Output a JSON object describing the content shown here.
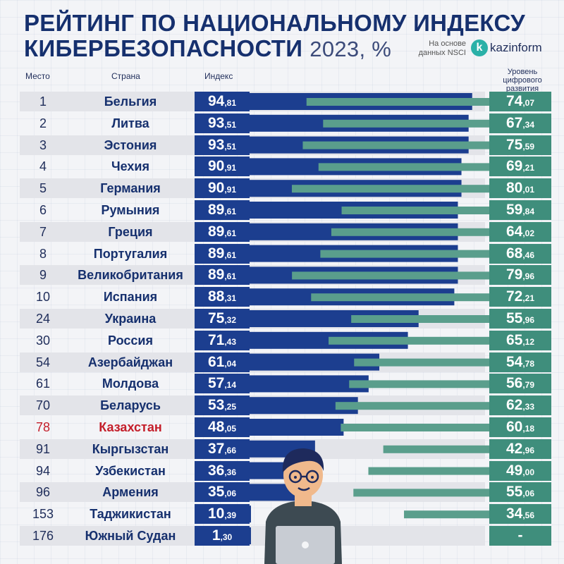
{
  "title": {
    "line1": "РЕЙТИНГ ПО НАЦИОНАЛЬНОМУ ИНДЕКСУ",
    "line2": "КИБЕРБЕЗОПАСНОСТИ",
    "year": "2023, %"
  },
  "source": {
    "line1": "На основе",
    "line2": "данных NSCI"
  },
  "logo": {
    "letter": "k",
    "text": "kazinform"
  },
  "headers": {
    "rank": "Место",
    "country": "Страна",
    "index": "Индекс",
    "digital": "Уровень цифрового развития"
  },
  "colors": {
    "index_bar": "#1c3e8f",
    "digital_bar": "#5a9e8c",
    "highlight": "#c41e2a"
  },
  "chart_data": {
    "type": "bar",
    "categories": [
      "Бельгия",
      "Литва",
      "Эстония",
      "Чехия",
      "Германия",
      "Румыния",
      "Греция",
      "Португалия",
      "Великобритания",
      "Испания",
      "Украина",
      "Россия",
      "Азербайджан",
      "Молдова",
      "Беларусь",
      "Казахстан",
      "Кыргызстан",
      "Узбекистан",
      "Армения",
      "Таджикистан",
      "Южный Судан"
    ],
    "ranks": [
      1,
      2,
      3,
      4,
      5,
      6,
      7,
      8,
      9,
      10,
      24,
      30,
      54,
      61,
      70,
      78,
      91,
      94,
      96,
      153,
      176
    ],
    "highlight_country": "Казахстан",
    "series": [
      {
        "name": "Индекс",
        "values": [
          94.81,
          93.51,
          93.51,
          90.91,
          90.91,
          89.61,
          89.61,
          89.61,
          89.61,
          88.31,
          75.32,
          71.43,
          61.04,
          57.14,
          53.25,
          48.05,
          37.66,
          36.36,
          35.06,
          10.39,
          1.3
        ],
        "int": [
          "94",
          "93",
          "93",
          "90",
          "90",
          "89",
          "89",
          "89",
          "89",
          "88",
          "75",
          "71",
          "61",
          "57",
          "53",
          "48",
          "37",
          "36",
          "35",
          "10",
          "1"
        ],
        "dec": [
          ",81",
          ",51",
          ",51",
          ",91",
          ",91",
          ",61",
          ",61",
          ",61",
          ",61",
          ",31",
          ",32",
          ",43",
          ",04",
          ",14",
          ",25",
          ",05",
          ",66",
          ",36",
          ",06",
          ",39",
          ",30"
        ]
      },
      {
        "name": "Уровень цифрового развития",
        "values": [
          74.07,
          67.34,
          75.59,
          69.21,
          80.01,
          59.84,
          64.02,
          68.46,
          79.96,
          72.21,
          55.96,
          65.12,
          54.78,
          56.79,
          62.33,
          60.18,
          42.96,
          49.0,
          55.06,
          34.56,
          null
        ],
        "int": [
          "74",
          "67",
          "75",
          "69",
          "80",
          "59",
          "64",
          "68",
          "79",
          "72",
          "55",
          "65",
          "54",
          "56",
          "62",
          "60",
          "42",
          "49",
          "55",
          "34",
          "-"
        ],
        "dec": [
          ",07",
          ",34",
          ",59",
          ",21",
          ",01",
          ",84",
          ",02",
          ",46",
          ",96",
          ",21",
          ",96",
          ",12",
          ",78",
          ",79",
          ",33",
          ",18",
          ",96",
          ",00",
          ",06",
          ",56",
          ""
        ]
      }
    ]
  }
}
